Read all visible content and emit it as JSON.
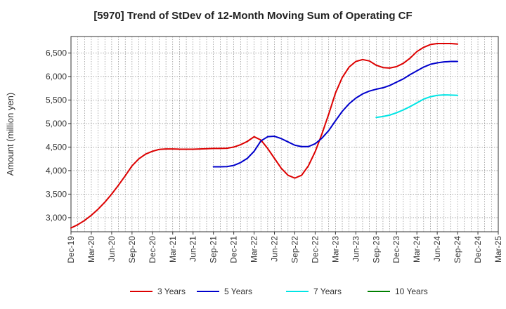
{
  "chart_data": {
    "type": "line",
    "title": "[5970]  Trend of StDev of 12-Month Moving Sum of Operating CF",
    "ylabel": "Amount (million yen)",
    "xlabel": "",
    "ylim": [
      2700,
      6850
    ],
    "yticks": [
      3000,
      3500,
      4000,
      4500,
      5000,
      5500,
      6000,
      6500
    ],
    "ytick_labels": [
      "3,000",
      "3,500",
      "4,000",
      "4,500",
      "5,000",
      "5,500",
      "6,000",
      "6,500"
    ],
    "xtick_labels": [
      "Dec-19",
      "Mar-20",
      "Jun-20",
      "Sep-20",
      "Dec-20",
      "Mar-21",
      "Jun-21",
      "Sep-21",
      "Dec-21",
      "Mar-22",
      "Jun-22",
      "Sep-22",
      "Dec-22",
      "Mar-23",
      "Jun-23",
      "Sep-23",
      "Dec-23",
      "Mar-24",
      "Jun-24",
      "Sep-24",
      "Dec-24",
      "Mar-25"
    ],
    "x_months": [
      "2019-12",
      "2020-01",
      "2020-02",
      "2020-03",
      "2020-04",
      "2020-05",
      "2020-06",
      "2020-07",
      "2020-08",
      "2020-09",
      "2020-10",
      "2020-11",
      "2020-12",
      "2021-01",
      "2021-02",
      "2021-03",
      "2021-04",
      "2021-05",
      "2021-06",
      "2021-07",
      "2021-08",
      "2021-09",
      "2021-10",
      "2021-11",
      "2021-12",
      "2022-01",
      "2022-02",
      "2022-03",
      "2022-04",
      "2022-05",
      "2022-06",
      "2022-07",
      "2022-08",
      "2022-09",
      "2022-10",
      "2022-11",
      "2022-12",
      "2023-01",
      "2023-02",
      "2023-03",
      "2023-04",
      "2023-05",
      "2023-06",
      "2023-07",
      "2023-08",
      "2023-09",
      "2023-10",
      "2023-11",
      "2023-12",
      "2024-01",
      "2024-02",
      "2024-03",
      "2024-04",
      "2024-05",
      "2024-06",
      "2024-07",
      "2024-08",
      "2024-09",
      "2024-10",
      "2024-11",
      "2024-12",
      "2025-01",
      "2025-02",
      "2025-03"
    ],
    "grid": true,
    "legend_position": "bottom",
    "series": [
      {
        "name": "3 Years",
        "color": "#dd0000",
        "values": [
          2780,
          2850,
          2940,
          3050,
          3180,
          3330,
          3500,
          3690,
          3890,
          4100,
          4250,
          4350,
          4410,
          4450,
          4460,
          4460,
          4455,
          4455,
          4455,
          4460,
          4465,
          4470,
          4470,
          4475,
          4500,
          4550,
          4620,
          4720,
          4650,
          4470,
          4260,
          4050,
          3900,
          3840,
          3900,
          4100,
          4400,
          4780,
          5200,
          5650,
          5980,
          6200,
          6320,
          6360,
          6330,
          6240,
          6190,
          6180,
          6210,
          6280,
          6390,
          6530,
          6620,
          6680,
          6700,
          6700,
          6700,
          6690,
          null,
          null,
          null,
          null,
          null,
          null
        ]
      },
      {
        "name": "5 Years",
        "color": "#0000cc",
        "values": [
          null,
          null,
          null,
          null,
          null,
          null,
          null,
          null,
          null,
          null,
          null,
          null,
          null,
          null,
          null,
          null,
          null,
          null,
          null,
          null,
          null,
          4080,
          4080,
          4085,
          4110,
          4170,
          4260,
          4410,
          4630,
          4720,
          4730,
          4680,
          4610,
          4540,
          4510,
          4510,
          4570,
          4690,
          4850,
          5060,
          5260,
          5420,
          5540,
          5630,
          5690,
          5730,
          5760,
          5810,
          5880,
          5950,
          6040,
          6120,
          6200,
          6260,
          6290,
          6310,
          6320,
          6320,
          null,
          null,
          null,
          null,
          null,
          null
        ]
      },
      {
        "name": "7 Years",
        "color": "#00e5e5",
        "values": [
          null,
          null,
          null,
          null,
          null,
          null,
          null,
          null,
          null,
          null,
          null,
          null,
          null,
          null,
          null,
          null,
          null,
          null,
          null,
          null,
          null,
          null,
          null,
          null,
          null,
          null,
          null,
          null,
          null,
          null,
          null,
          null,
          null,
          null,
          null,
          null,
          null,
          null,
          null,
          null,
          null,
          null,
          null,
          null,
          null,
          5130,
          5150,
          5180,
          5230,
          5290,
          5360,
          5440,
          5520,
          5570,
          5600,
          5610,
          5605,
          5600,
          null,
          null,
          null,
          null,
          null,
          null
        ]
      },
      {
        "name": "10 Years",
        "color": "#008000",
        "values": []
      }
    ]
  }
}
